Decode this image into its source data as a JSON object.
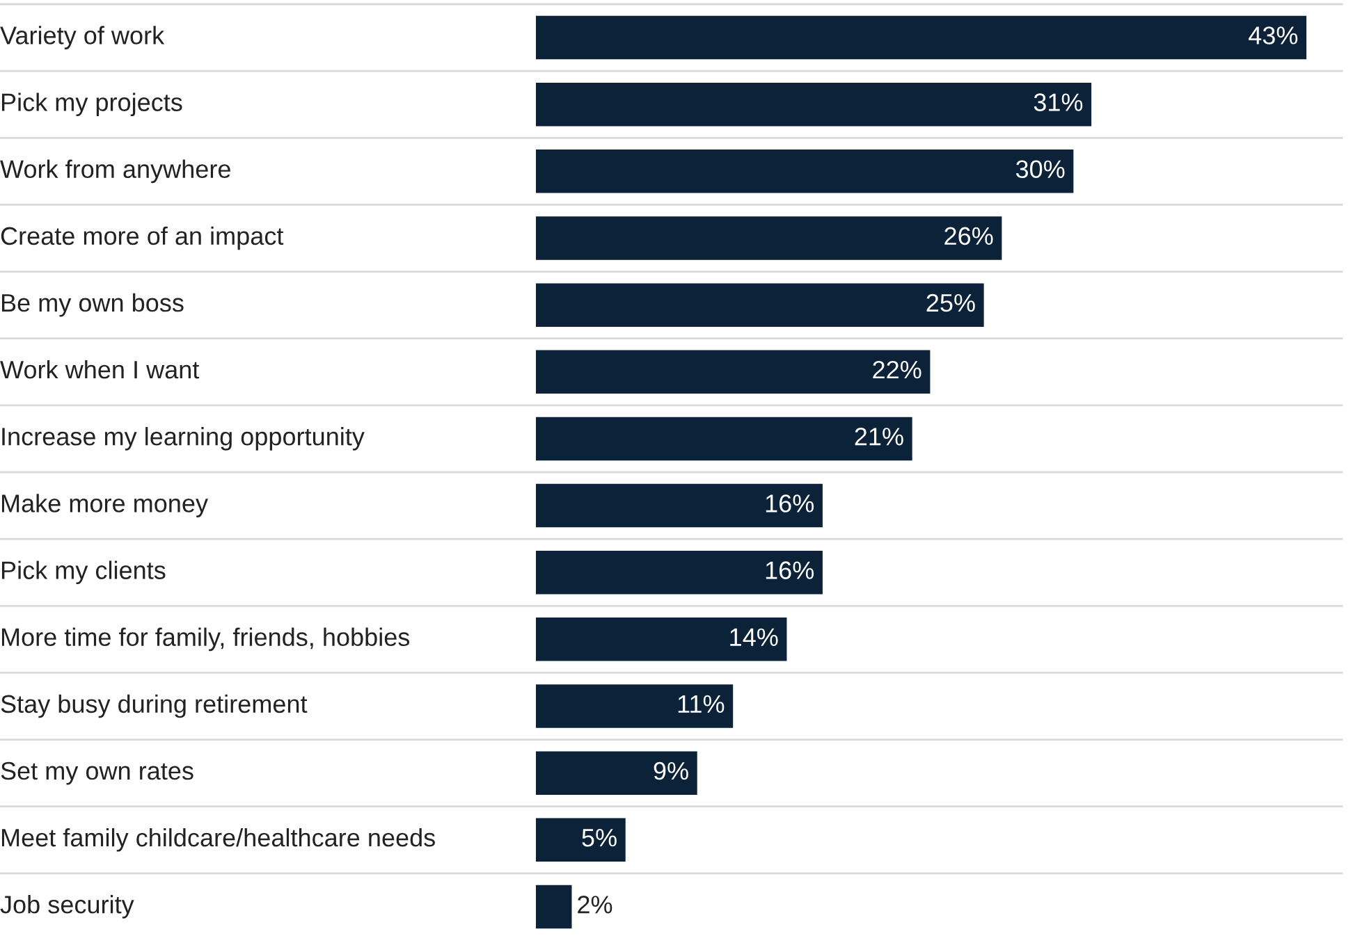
{
  "chart_data": {
    "type": "bar",
    "orientation": "horizontal",
    "categories": [
      "Variety of work",
      "Pick my projects",
      "Work from anywhere",
      "Create more of an impact",
      "Be my own boss",
      "Work when I want",
      "Increase my learning opportunity",
      "Make more money",
      "Pick my clients",
      "More time for family, friends, hobbies",
      "Stay busy during retirement",
      "Set my own rates",
      "Meet family childcare/healthcare needs",
      "Job security"
    ],
    "values": [
      43,
      31,
      30,
      26,
      25,
      22,
      21,
      16,
      16,
      14,
      11,
      9,
      5,
      2
    ],
    "value_labels": [
      "43%",
      "31%",
      "30%",
      "26%",
      "25%",
      "22%",
      "21%",
      "16%",
      "16%",
      "14%",
      "11%",
      "9%",
      "5%",
      "2%"
    ],
    "color": "#0b2239",
    "grid": "y",
    "legend": false
  }
}
